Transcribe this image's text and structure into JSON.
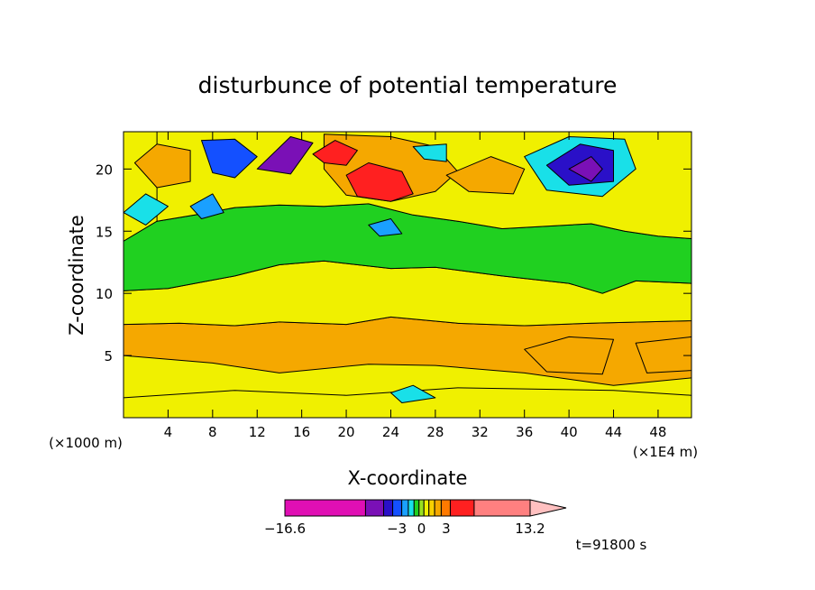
{
  "chart_data": {
    "type": "heatmap",
    "title": "disturbunce of potential temperature",
    "xlabel": "X-coordinate",
    "ylabel": "Z-coordinate",
    "x_unit_label": "(×1000 m)",
    "x_scale_label": "(×1E4 m)",
    "xlim": [
      0,
      51
    ],
    "ylim": [
      0,
      23
    ],
    "x_ticks": [
      4,
      8,
      12,
      16,
      20,
      24,
      28,
      32,
      36,
      40,
      44,
      48
    ],
    "x_tick_labels": [
      "4",
      "8",
      "12",
      "16",
      "20",
      "24",
      "28",
      "32",
      "36",
      "40",
      "44",
      "48"
    ],
    "y_ticks": [
      5,
      10,
      15,
      20
    ],
    "y_tick_labels": [
      "5",
      "10",
      "15",
      "20"
    ],
    "colorbar": {
      "min": -16.6,
      "max": 13.2,
      "tick_labels": [
        "−16.6",
        "−3",
        "0",
        "3",
        "13.2"
      ],
      "tick_values": [
        -16.6,
        -3,
        0,
        3,
        13.2
      ],
      "colors": [
        "#e00fb4",
        "#7a10b6",
        "#2a10c8",
        "#1450ff",
        "#1aa0ff",
        "#19e0e8",
        "#20d020",
        "#9ae020",
        "#f0f000",
        "#f8d000",
        "#f5a800",
        "#ff7a00",
        "#ff2020",
        "#ff8080",
        "#ffc0c0"
      ]
    },
    "time_label": "t=91800 s",
    "regions": [
      {
        "level": 0.5,
        "shape": [
          [
            0,
            0
          ],
          [
            51,
            0
          ],
          [
            51,
            1.8
          ],
          [
            44,
            2.2
          ],
          [
            30,
            2.4
          ],
          [
            20,
            1.8
          ],
          [
            10,
            2.2
          ],
          [
            0,
            1.6
          ]
        ]
      },
      {
        "level": 1.5,
        "shape": [
          [
            0,
            7.5
          ],
          [
            5,
            7.6
          ],
          [
            10,
            7.4
          ],
          [
            14,
            7.7
          ],
          [
            20,
            7.5
          ],
          [
            24,
            8.1
          ],
          [
            30,
            7.6
          ],
          [
            36,
            7.4
          ],
          [
            42,
            7.6
          ],
          [
            51,
            7.8
          ],
          [
            51,
            3.2
          ],
          [
            44,
            2.6
          ],
          [
            36,
            3.6
          ],
          [
            28,
            4.2
          ],
          [
            22,
            4.3
          ],
          [
            14,
            3.6
          ],
          [
            8,
            4.4
          ],
          [
            0,
            5.0
          ]
        ]
      },
      {
        "level": 0.5,
        "shape": [
          [
            0,
            10.2
          ],
          [
            4,
            10.4
          ],
          [
            10,
            11.4
          ],
          [
            14,
            12.3
          ],
          [
            18,
            12.6
          ],
          [
            24,
            12.0
          ],
          [
            28,
            12.1
          ],
          [
            34,
            11.4
          ],
          [
            40,
            10.8
          ],
          [
            43,
            10.0
          ],
          [
            46,
            11.0
          ],
          [
            51,
            10.8
          ],
          [
            51,
            7.8
          ],
          [
            42,
            7.6
          ],
          [
            36,
            7.4
          ],
          [
            30,
            7.6
          ],
          [
            24,
            8.1
          ],
          [
            20,
            7.5
          ],
          [
            14,
            7.7
          ],
          [
            10,
            7.4
          ],
          [
            5,
            7.6
          ],
          [
            0,
            7.5
          ]
        ]
      },
      {
        "level": -0.5,
        "shape": [
          [
            0,
            14.2
          ],
          [
            3,
            15.8
          ],
          [
            7,
            16.4
          ],
          [
            10,
            16.9
          ],
          [
            14,
            17.1
          ],
          [
            18,
            17.0
          ],
          [
            22,
            17.2
          ],
          [
            26,
            16.3
          ],
          [
            30,
            15.8
          ],
          [
            34,
            15.2
          ],
          [
            38,
            15.4
          ],
          [
            42,
            15.6
          ],
          [
            45,
            15.0
          ],
          [
            48,
            14.6
          ],
          [
            51,
            14.4
          ],
          [
            51,
            10.8
          ],
          [
            46,
            11.0
          ],
          [
            43,
            10.0
          ],
          [
            40,
            10.8
          ],
          [
            34,
            11.4
          ],
          [
            28,
            12.1
          ],
          [
            24,
            12.0
          ],
          [
            18,
            12.6
          ],
          [
            14,
            12.3
          ],
          [
            10,
            11.4
          ],
          [
            4,
            10.4
          ],
          [
            0,
            10.2
          ]
        ]
      },
      {
        "level": 0.5,
        "shape": [
          [
            3,
            23
          ],
          [
            51,
            23
          ],
          [
            51,
            14.4
          ],
          [
            48,
            14.6
          ],
          [
            45,
            15.0
          ],
          [
            42,
            15.6
          ],
          [
            38,
            15.4
          ],
          [
            34,
            15.2
          ],
          [
            30,
            15.8
          ],
          [
            26,
            16.3
          ],
          [
            22,
            17.2
          ],
          [
            18,
            17.0
          ],
          [
            14,
            17.1
          ],
          [
            10,
            16.9
          ],
          [
            7,
            16.4
          ],
          [
            3,
            15.8
          ]
        ]
      },
      {
        "level": 1.5,
        "shape": [
          [
            18,
            22.8
          ],
          [
            24,
            22.6
          ],
          [
            28,
            21.8
          ],
          [
            30,
            19.8
          ],
          [
            28,
            18.2
          ],
          [
            24,
            17.4
          ],
          [
            20,
            17.9
          ],
          [
            18,
            20.0
          ]
        ]
      },
      {
        "level": 1.5,
        "shape": [
          [
            1,
            20.5
          ],
          [
            3,
            22.0
          ],
          [
            6,
            21.5
          ],
          [
            6,
            19.0
          ],
          [
            3,
            18.5
          ]
        ]
      },
      {
        "level": 1.5,
        "shape": [
          [
            29,
            19.5
          ],
          [
            33,
            21.0
          ],
          [
            36,
            20.0
          ],
          [
            35,
            18.0
          ],
          [
            31,
            18.2
          ]
        ]
      },
      {
        "level": 1.5,
        "shape": [
          [
            36,
            5.5
          ],
          [
            40,
            6.5
          ],
          [
            44,
            6.3
          ],
          [
            43,
            3.5
          ],
          [
            38,
            3.7
          ]
        ]
      },
      {
        "level": 1.5,
        "shape": [
          [
            46,
            6.0
          ],
          [
            51,
            6.5
          ],
          [
            51,
            3.8
          ],
          [
            47,
            3.6
          ]
        ]
      },
      {
        "level": 5.0,
        "shape": [
          [
            20,
            19.5
          ],
          [
            22,
            20.5
          ],
          [
            25,
            19.8
          ],
          [
            26,
            18.0
          ],
          [
            24,
            17.4
          ],
          [
            21,
            17.8
          ]
        ]
      },
      {
        "level": 5.0,
        "shape": [
          [
            17,
            21.2
          ],
          [
            19,
            22.3
          ],
          [
            21,
            21.5
          ],
          [
            20,
            20.3
          ],
          [
            18,
            20.5
          ]
        ]
      },
      {
        "level": -3.0,
        "shape": [
          [
            7,
            22.3
          ],
          [
            10,
            22.4
          ],
          [
            12,
            21.0
          ],
          [
            10,
            19.3
          ],
          [
            8,
            19.7
          ]
        ]
      },
      {
        "level": -7.0,
        "shape": [
          [
            12,
            20.0
          ],
          [
            15,
            22.6
          ],
          [
            17,
            22.1
          ],
          [
            15,
            19.6
          ]
        ]
      },
      {
        "level": -1.0,
        "shape": [
          [
            36,
            21.0
          ],
          [
            40,
            22.6
          ],
          [
            45,
            22.4
          ],
          [
            46,
            20.0
          ],
          [
            43,
            17.8
          ],
          [
            38,
            18.3
          ]
        ]
      },
      {
        "level": -4.0,
        "shape": [
          [
            38,
            20.3
          ],
          [
            41,
            22.0
          ],
          [
            44,
            21.5
          ],
          [
            44,
            19.0
          ],
          [
            40,
            18.7
          ]
        ]
      },
      {
        "level": -7.0,
        "shape": [
          [
            40,
            20.0
          ],
          [
            42,
            21.0
          ],
          [
            43,
            20.0
          ],
          [
            42,
            19.0
          ]
        ]
      },
      {
        "level": -1.0,
        "shape": [
          [
            0,
            16.5
          ],
          [
            2,
            18.0
          ],
          [
            4,
            17.0
          ],
          [
            2,
            15.5
          ]
        ]
      },
      {
        "level": -2.0,
        "shape": [
          [
            6,
            17.0
          ],
          [
            8,
            18.0
          ],
          [
            9,
            16.5
          ],
          [
            7,
            16.0
          ]
        ]
      },
      {
        "level": -2.0,
        "shape": [
          [
            22,
            15.5
          ],
          [
            24,
            16.0
          ],
          [
            25,
            14.8
          ],
          [
            23,
            14.6
          ]
        ]
      },
      {
        "level": -1.0,
        "shape": [
          [
            26,
            21.8
          ],
          [
            29,
            22.0
          ],
          [
            29,
            20.6
          ],
          [
            27,
            20.8
          ]
        ]
      },
      {
        "level": -1.0,
        "shape": [
          [
            24,
            2.0
          ],
          [
            26,
            2.6
          ],
          [
            28,
            1.6
          ],
          [
            25,
            1.2
          ]
        ]
      }
    ]
  }
}
